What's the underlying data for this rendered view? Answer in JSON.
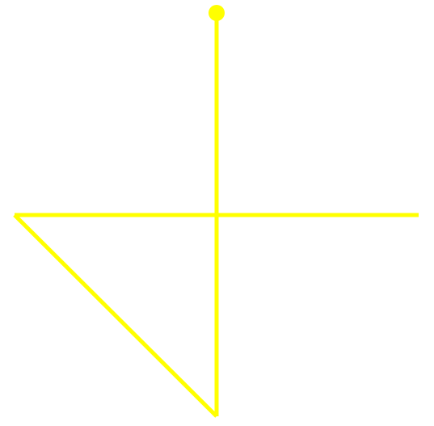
{
  "figure": {
    "background_color": "#ffffff",
    "stroke_color": "#ffff00",
    "marker_color": "#ffff00",
    "elements": [
      {
        "kind": "vertical-line",
        "label": ""
      },
      {
        "kind": "horizontal-line",
        "label": ""
      },
      {
        "kind": "diagonal-line",
        "label": ""
      },
      {
        "kind": "end-dot",
        "label": ""
      }
    ]
  }
}
